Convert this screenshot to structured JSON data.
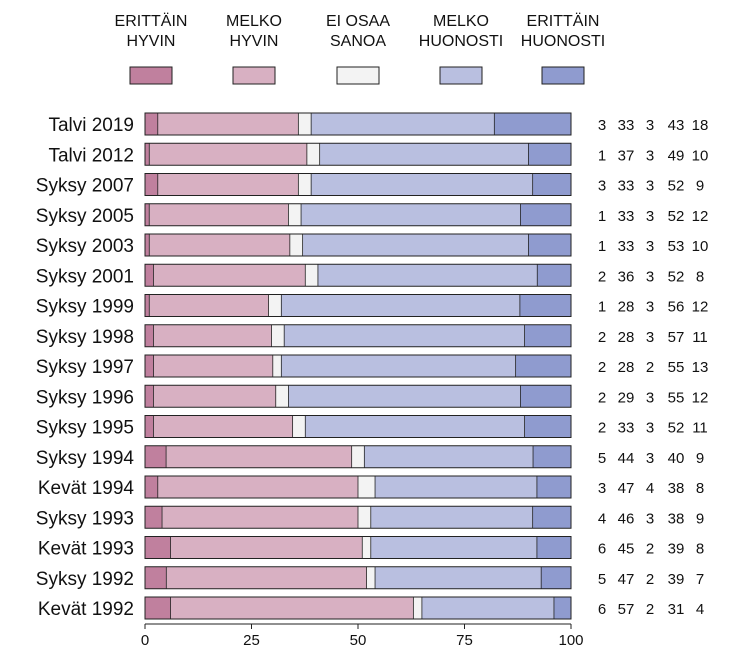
{
  "chart_data": {
    "type": "bar",
    "orientation": "horizontal",
    "stacked": true,
    "title": "",
    "xlabel": "",
    "ylabel": "",
    "xlim": [
      0,
      100
    ],
    "x_ticks": [
      0,
      25,
      50,
      75,
      100
    ],
    "grid": false,
    "legend_position": "top",
    "categories": [
      "Talvi 2019",
      "Talvi 2012",
      "Syksy 2007",
      "Syksy 2005",
      "Syksy 2003",
      "Syksy 2001",
      "Syksy 1999",
      "Syksy 1998",
      "Syksy 1997",
      "Syksy 1996",
      "Syksy 1995",
      "Syksy 1994",
      "Kevät 1994",
      "Syksy 1993",
      "Kevät 1993",
      "Syksy 1992",
      "Kevät 1992"
    ],
    "series": [
      {
        "name": "ERITTÄIN HYVIN",
        "legend_lines": [
          "ERITTÄIN",
          "HYVIN"
        ],
        "color": "#c0809e",
        "values": [
          3,
          1,
          3,
          1,
          1,
          2,
          1,
          2,
          2,
          2,
          2,
          5,
          3,
          4,
          6,
          5,
          6
        ]
      },
      {
        "name": "MELKO HYVIN",
        "legend_lines": [
          "MELKO",
          "HYVIN"
        ],
        "color": "#d8b0c2",
        "values": [
          33,
          37,
          33,
          33,
          33,
          36,
          28,
          28,
          28,
          29,
          33,
          44,
          47,
          46,
          45,
          47,
          57
        ]
      },
      {
        "name": "EI OSAA SANOA",
        "legend_lines": [
          "EI OSAA",
          "SANOA"
        ],
        "color": "#f3f3f3",
        "values": [
          3,
          3,
          3,
          3,
          3,
          3,
          3,
          3,
          2,
          3,
          3,
          3,
          4,
          3,
          2,
          2,
          2
        ]
      },
      {
        "name": "MELKO HUONOSTI",
        "legend_lines": [
          "MELKO",
          "HUONOSTI"
        ],
        "color": "#b9bfe0",
        "values": [
          43,
          49,
          52,
          52,
          53,
          52,
          56,
          57,
          55,
          55,
          52,
          40,
          38,
          38,
          39,
          39,
          31
        ]
      },
      {
        "name": "ERITTÄIN HUONOSTI",
        "legend_lines": [
          "ERITTÄIN",
          "HUONOSTI"
        ],
        "color": "#8f9bcf",
        "values": [
          18,
          10,
          9,
          12,
          10,
          8,
          12,
          11,
          13,
          12,
          11,
          9,
          8,
          9,
          8,
          7,
          4
        ]
      }
    ]
  }
}
